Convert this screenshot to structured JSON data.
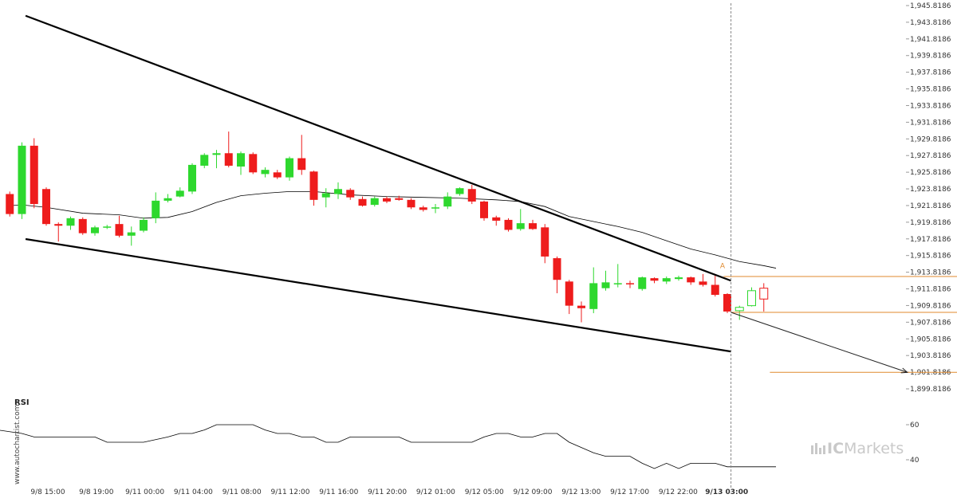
{
  "chart_data": {
    "type": "candlestick",
    "rsi_label": "RSI",
    "watermark": "www.autochartist.com",
    "brand": {
      "ic": "IC",
      "markets": "Markets"
    },
    "marker_label": "A",
    "price_ticks": [
      "1,945.8186",
      "1,943.8186",
      "1,941.8186",
      "1,939.8186",
      "1,937.8186",
      "1,935.8186",
      "1,933.8186",
      "1,931.8186",
      "1,929.8186",
      "1,927.8186",
      "1,925.8186",
      "1,923.8186",
      "1,921.8186",
      "1,919.8186",
      "1,917.8186",
      "1,915.8186",
      "1,913.8186",
      "1,911.8186",
      "1,909.8186",
      "1,907.8186",
      "1,905.8186",
      "1,903.8186",
      "1,901.8186",
      "1,899.8186"
    ],
    "price_tick_values": [
      1945.8186,
      1943.8186,
      1941.8186,
      1939.8186,
      1937.8186,
      1935.8186,
      1933.8186,
      1931.8186,
      1929.8186,
      1927.8186,
      1925.8186,
      1923.8186,
      1921.8186,
      1919.8186,
      1917.8186,
      1915.8186,
      1913.8186,
      1911.8186,
      1909.8186,
      1907.8186,
      1905.8186,
      1903.8186,
      1901.8186,
      1899.8186
    ],
    "time_ticks": [
      "9/8 15:00",
      "9/8 19:00",
      "9/11 00:00",
      "9/11 04:00",
      "9/11 08:00",
      "9/11 12:00",
      "9/11 16:00",
      "9/11 20:00",
      "9/12 01:00",
      "9/12 05:00",
      "9/12 09:00",
      "9/12 13:00",
      "9/12 17:00",
      "9/12 22:00",
      "9/13 03:00"
    ],
    "rsi_ticks": [
      "60",
      "40"
    ],
    "rsi_tick_values": [
      60,
      40
    ],
    "colors": {
      "up": "#2ed82e",
      "down": "#ee1c1c",
      "line": "#000000",
      "fib": "#e08a2e",
      "grid_dash": "#888888"
    },
    "candles": [
      {
        "t": -1,
        "o": 1923.2,
        "h": 1923.5,
        "l": 1920.5,
        "c": 1920.8
      },
      {
        "t": 0,
        "o": 1920.8,
        "h": 1929.4,
        "l": 1920.2,
        "c": 1929.0
      },
      {
        "t": 1,
        "o": 1929.0,
        "h": 1929.9,
        "l": 1921.5,
        "c": 1922.0
      },
      {
        "t": 2,
        "o": 1923.8,
        "h": 1924.0,
        "l": 1919.4,
        "c": 1919.6
      },
      {
        "t": 3,
        "o": 1919.6,
        "h": 1919.8,
        "l": 1917.5,
        "c": 1919.4
      },
      {
        "t": 4,
        "o": 1919.4,
        "h": 1920.5,
        "l": 1918.9,
        "c": 1920.3
      },
      {
        "t": 5,
        "o": 1920.2,
        "h": 1920.4,
        "l": 1918.3,
        "c": 1918.5
      },
      {
        "t": 6,
        "o": 1918.5,
        "h": 1919.4,
        "l": 1918.2,
        "c": 1919.2
      },
      {
        "t": 7,
        "o": 1919.3,
        "h": 1919.5,
        "l": 1919.0,
        "c": 1919.3
      },
      {
        "t": 8,
        "o": 1919.6,
        "h": 1920.6,
        "l": 1918.0,
        "c": 1918.2
      },
      {
        "t": 9,
        "o": 1918.2,
        "h": 1919.3,
        "l": 1917.0,
        "c": 1918.6
      },
      {
        "t": 10,
        "o": 1918.8,
        "h": 1920.4,
        "l": 1918.6,
        "c": 1920.1
      },
      {
        "t": 11,
        "o": 1920.3,
        "h": 1923.4,
        "l": 1919.7,
        "c": 1922.4
      },
      {
        "t": 12,
        "o": 1922.4,
        "h": 1923.2,
        "l": 1922.2,
        "c": 1922.7
      },
      {
        "t": 13,
        "o": 1922.9,
        "h": 1924.0,
        "l": 1922.8,
        "c": 1923.6
      },
      {
        "t": 14,
        "o": 1923.5,
        "h": 1926.9,
        "l": 1923.2,
        "c": 1926.7
      },
      {
        "t": 15,
        "o": 1926.6,
        "h": 1928.1,
        "l": 1926.3,
        "c": 1927.9
      },
      {
        "t": 16,
        "o": 1927.9,
        "h": 1928.5,
        "l": 1926.3,
        "c": 1928.1
      },
      {
        "t": 17,
        "o": 1928.1,
        "h": 1930.7,
        "l": 1926.4,
        "c": 1926.6
      },
      {
        "t": 18,
        "o": 1926.5,
        "h": 1928.3,
        "l": 1925.5,
        "c": 1928.1
      },
      {
        "t": 19,
        "o": 1928.0,
        "h": 1928.2,
        "l": 1925.6,
        "c": 1925.8
      },
      {
        "t": 20,
        "o": 1925.6,
        "h": 1926.4,
        "l": 1925.2,
        "c": 1926.1
      },
      {
        "t": 21,
        "o": 1925.8,
        "h": 1926.1,
        "l": 1925.0,
        "c": 1925.2
      },
      {
        "t": 22,
        "o": 1925.2,
        "h": 1927.7,
        "l": 1924.8,
        "c": 1927.5
      },
      {
        "t": 23,
        "o": 1927.5,
        "h": 1930.3,
        "l": 1925.5,
        "c": 1926.1
      },
      {
        "t": 24,
        "o": 1925.9,
        "h": 1926.0,
        "l": 1921.8,
        "c": 1922.5
      },
      {
        "t": 25,
        "o": 1922.8,
        "h": 1923.9,
        "l": 1921.6,
        "c": 1923.3
      },
      {
        "t": 26,
        "o": 1923.2,
        "h": 1924.6,
        "l": 1922.6,
        "c": 1923.8
      },
      {
        "t": 27,
        "o": 1923.7,
        "h": 1923.9,
        "l": 1922.5,
        "c": 1922.8
      },
      {
        "t": 28,
        "o": 1922.6,
        "h": 1922.9,
        "l": 1921.7,
        "c": 1921.8
      },
      {
        "t": 29,
        "o": 1921.9,
        "h": 1922.9,
        "l": 1921.7,
        "c": 1922.7
      },
      {
        "t": 30,
        "o": 1922.7,
        "h": 1922.9,
        "l": 1922.1,
        "c": 1922.3
      },
      {
        "t": 31,
        "o": 1922.7,
        "h": 1923.0,
        "l": 1922.4,
        "c": 1922.5
      },
      {
        "t": 32,
        "o": 1922.5,
        "h": 1922.7,
        "l": 1921.4,
        "c": 1921.6
      },
      {
        "t": 33,
        "o": 1921.6,
        "h": 1921.8,
        "l": 1921.1,
        "c": 1921.3
      },
      {
        "t": 34,
        "o": 1921.5,
        "h": 1922.0,
        "l": 1920.9,
        "c": 1921.6
      },
      {
        "t": 35,
        "o": 1921.7,
        "h": 1923.4,
        "l": 1921.4,
        "c": 1922.9
      },
      {
        "t": 36,
        "o": 1923.2,
        "h": 1924.0,
        "l": 1923.0,
        "c": 1923.9
      },
      {
        "t": 37,
        "o": 1923.8,
        "h": 1924.3,
        "l": 1922.0,
        "c": 1922.3
      },
      {
        "t": 38,
        "o": 1922.3,
        "h": 1922.4,
        "l": 1920.0,
        "c": 1920.3
      },
      {
        "t": 39,
        "o": 1920.4,
        "h": 1920.6,
        "l": 1919.4,
        "c": 1920.0
      },
      {
        "t": 40,
        "o": 1920.1,
        "h": 1920.3,
        "l": 1918.7,
        "c": 1918.9
      },
      {
        "t": 41,
        "o": 1919.0,
        "h": 1921.4,
        "l": 1918.8,
        "c": 1919.7
      },
      {
        "t": 42,
        "o": 1919.7,
        "h": 1920.1,
        "l": 1918.9,
        "c": 1919.0
      },
      {
        "t": 43,
        "o": 1919.2,
        "h": 1919.6,
        "l": 1914.9,
        "c": 1915.7
      },
      {
        "t": 44,
        "o": 1915.5,
        "h": 1915.7,
        "l": 1911.3,
        "c": 1912.9
      },
      {
        "t": 45,
        "o": 1912.7,
        "h": 1912.9,
        "l": 1908.8,
        "c": 1909.8
      },
      {
        "t": 46,
        "o": 1909.8,
        "h": 1910.3,
        "l": 1907.8,
        "c": 1909.5
      },
      {
        "t": 47,
        "o": 1909.4,
        "h": 1914.4,
        "l": 1908.9,
        "c": 1912.5
      },
      {
        "t": 48,
        "o": 1911.9,
        "h": 1914.0,
        "l": 1911.6,
        "c": 1912.6
      },
      {
        "t": 49,
        "o": 1912.4,
        "h": 1914.8,
        "l": 1912.0,
        "c": 1912.5
      },
      {
        "t": 50,
        "o": 1912.5,
        "h": 1912.8,
        "l": 1911.9,
        "c": 1912.4
      },
      {
        "t": 51,
        "o": 1911.8,
        "h": 1913.3,
        "l": 1911.6,
        "c": 1913.2
      },
      {
        "t": 52,
        "o": 1913.1,
        "h": 1913.2,
        "l": 1912.5,
        "c": 1912.8
      },
      {
        "t": 53,
        "o": 1912.7,
        "h": 1913.3,
        "l": 1912.4,
        "c": 1913.1
      },
      {
        "t": 54,
        "o": 1913.0,
        "h": 1913.4,
        "l": 1912.8,
        "c": 1913.2
      },
      {
        "t": 55,
        "o": 1913.2,
        "h": 1913.3,
        "l": 1912.3,
        "c": 1912.6
      },
      {
        "t": 56,
        "o": 1912.7,
        "h": 1913.6,
        "l": 1912.1,
        "c": 1912.3
      },
      {
        "t": 57,
        "o": 1912.3,
        "h": 1913.6,
        "l": 1910.9,
        "c": 1911.1
      },
      {
        "t": 58,
        "o": 1911.2,
        "h": 1911.3,
        "l": 1908.9,
        "c": 1909.1
      }
    ],
    "future_candles": [
      {
        "t": 59,
        "o": 1909.2,
        "h": 1909.8,
        "l": 1908.1,
        "c": 1909.6
      },
      {
        "t": 60,
        "o": 1909.8,
        "h": 1912.0,
        "l": 1909.7,
        "c": 1911.6
      },
      {
        "t": 61,
        "o": 1911.9,
        "h": 1912.5,
        "l": 1909.1,
        "c": 1910.6
      }
    ],
    "moving_average": [
      [
        -1,
        1921.8
      ],
      [
        0,
        1921.9
      ],
      [
        2,
        1921.6
      ],
      [
        5,
        1920.9
      ],
      [
        8,
        1920.7
      ],
      [
        10,
        1920.3
      ],
      [
        12,
        1920.4
      ],
      [
        14,
        1921.1
      ],
      [
        16,
        1922.2
      ],
      [
        18,
        1923.0
      ],
      [
        20,
        1923.3
      ],
      [
        22,
        1923.5
      ],
      [
        24,
        1923.5
      ],
      [
        27,
        1923.1
      ],
      [
        30,
        1922.9
      ],
      [
        33,
        1922.8
      ],
      [
        36,
        1922.7
      ],
      [
        39,
        1922.5
      ],
      [
        41,
        1922.3
      ],
      [
        43,
        1921.7
      ],
      [
        45,
        1920.5
      ],
      [
        47,
        1919.9
      ],
      [
        49,
        1919.3
      ],
      [
        51,
        1918.6
      ],
      [
        53,
        1917.6
      ],
      [
        55,
        1916.6
      ],
      [
        57,
        1915.9
      ],
      [
        59,
        1915.1
      ],
      [
        61,
        1914.6
      ],
      [
        62,
        1914.3
      ]
    ],
    "upper_trendline": [
      [
        0.3,
        1944.6
      ],
      [
        58.3,
        1912.8
      ]
    ],
    "lower_trendline": [
      [
        0.3,
        1917.8
      ],
      [
        58.3,
        1904.3
      ]
    ],
    "projection_arrow": [
      [
        58.3,
        1909.0
      ],
      [
        72.8,
        1901.8
      ]
    ],
    "fib_levels": [
      {
        "value": 1913.3,
        "t_start": 57.7,
        "t_end": 78.2
      },
      {
        "value": 1909.0,
        "t_start": 58.3,
        "t_end": 78.2
      },
      {
        "value": 1901.8,
        "t_start": 61.5,
        "t_end": 78.2
      }
    ],
    "current_time_index": 58.3,
    "rsi": [
      [
        -2,
        57
      ],
      [
        0,
        55
      ],
      [
        1,
        53
      ],
      [
        6,
        53
      ],
      [
        7,
        50
      ],
      [
        10,
        50
      ],
      [
        12,
        53
      ],
      [
        13,
        55
      ],
      [
        14,
        55
      ],
      [
        15,
        57
      ],
      [
        16,
        60
      ],
      [
        19,
        60
      ],
      [
        20,
        57
      ],
      [
        21,
        55
      ],
      [
        22,
        55
      ],
      [
        23,
        53
      ],
      [
        24,
        53
      ],
      [
        25,
        50
      ],
      [
        26,
        50
      ],
      [
        27,
        53
      ],
      [
        31,
        53
      ],
      [
        32,
        50
      ],
      [
        37,
        50
      ],
      [
        38,
        53
      ],
      [
        39,
        55
      ],
      [
        40,
        55
      ],
      [
        41,
        53
      ],
      [
        42,
        53
      ],
      [
        43,
        55
      ],
      [
        44,
        55
      ],
      [
        45,
        50
      ],
      [
        46,
        47
      ],
      [
        47,
        44
      ],
      [
        48,
        42
      ],
      [
        50,
        42
      ],
      [
        51,
        38
      ],
      [
        52,
        35
      ],
      [
        53,
        38
      ],
      [
        54,
        35
      ],
      [
        55,
        38
      ],
      [
        57,
        38
      ],
      [
        58,
        36
      ],
      [
        62,
        36
      ]
    ]
  }
}
